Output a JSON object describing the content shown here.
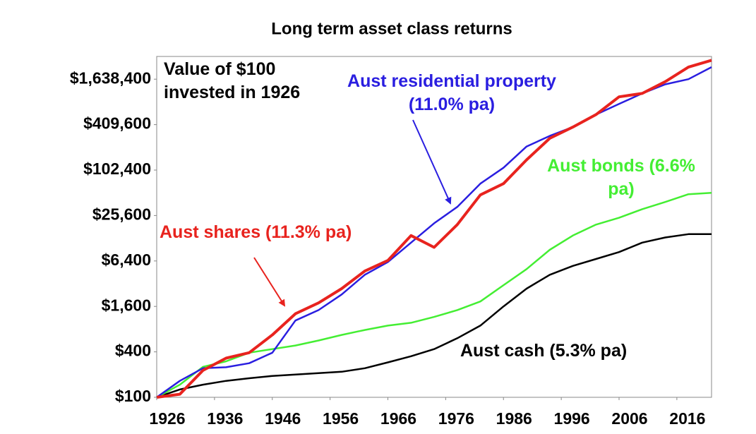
{
  "chart_data": {
    "type": "line",
    "title": "Long term asset class returns",
    "annotation": "Value of $100 invested in 1926",
    "log_scale": true,
    "grid": false,
    "x": [
      1926,
      1930,
      1934,
      1938,
      1942,
      1946,
      1950,
      1954,
      1958,
      1962,
      1966,
      1970,
      1974,
      1978,
      1982,
      1986,
      1990,
      1994,
      1998,
      2002,
      2006,
      2010,
      2014,
      2018,
      2022
    ],
    "xlim": [
      1926,
      2022
    ],
    "xticks": [
      1926,
      1936,
      1946,
      1956,
      1966,
      1976,
      1986,
      1996,
      2006,
      2016
    ],
    "ylim": [
      100,
      3276800
    ],
    "yticks": [
      {
        "value": 100,
        "label": "$100"
      },
      {
        "value": 400,
        "label": "$400"
      },
      {
        "value": 1600,
        "label": "$1,600"
      },
      {
        "value": 6400,
        "label": "$6,400"
      },
      {
        "value": 25600,
        "label": "$25,600"
      },
      {
        "value": 102400,
        "label": "$102,400"
      },
      {
        "value": 409600,
        "label": "$409,600"
      },
      {
        "value": 1638400,
        "label": "$1,638,400"
      }
    ],
    "series": [
      {
        "name": "Aust cash (5.3% pa)",
        "color": "#000000",
        "values": [
          100,
          127,
          147,
          165,
          179,
          192,
          200,
          209,
          218,
          243,
          290,
          350,
          435,
          606,
          890,
          1600,
          2750,
          4200,
          5500,
          6800,
          8400,
          11200,
          13100,
          14500,
          14500
        ]
      },
      {
        "name": "Aust bonds (6.6% pa)",
        "color": "#44ee33",
        "values": [
          100,
          147,
          253,
          300,
          390,
          435,
          486,
          566,
          670,
          780,
          890,
          970,
          1160,
          1430,
          1860,
          3060,
          5000,
          9000,
          13900,
          19400,
          23900,
          31100,
          38700,
          49000,
          51200
        ]
      },
      {
        "name": "Aust residential property (11.0% pa)",
        "color": "#2a1ee0",
        "values": [
          100,
          165,
          243,
          250,
          283,
          390,
          1040,
          1430,
          2300,
          4200,
          6200,
          11200,
          20200,
          33300,
          67700,
          110000,
          210000,
          290000,
          380000,
          556000,
          770000,
          1060000,
          1400000,
          1640000,
          2370000
        ]
      },
      {
        "name": "Aust shares (11.3% pa)",
        "color": "#e8231e",
        "values": [
          100,
          110,
          227,
          330,
          390,
          670,
          1280,
          1780,
          2750,
          4700,
          6500,
          13900,
          9700,
          19400,
          48000,
          67700,
          140000,
          270000,
          380000,
          556000,
          956000,
          1060000,
          1520000,
          2370000,
          2920000
        ]
      }
    ]
  }
}
